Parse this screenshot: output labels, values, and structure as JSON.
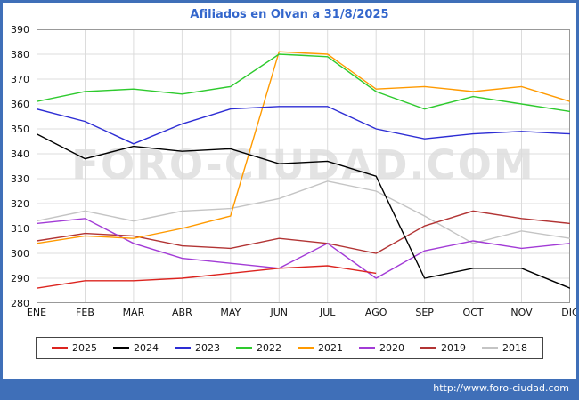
{
  "page": {
    "url": "http://www.foro-ciudad.com",
    "frame_color": "#3f6fb8",
    "title_color": "#3366cc"
  },
  "chart_data": {
    "type": "line",
    "title": "Afiliados en Olvan a 31/8/2025",
    "watermark": "FORO-CIUDAD.COM",
    "categories": [
      "ENE",
      "FEB",
      "MAR",
      "ABR",
      "MAY",
      "JUN",
      "JUL",
      "AGO",
      "SEP",
      "OCT",
      "NOV",
      "DIC"
    ],
    "ylim": [
      280,
      390
    ],
    "ytick_step": 10,
    "grid": true,
    "legend_position": "bottom",
    "series": [
      {
        "name": "2025",
        "color": "#dc241f",
        "values": [
          286,
          289,
          289,
          290,
          292,
          294,
          295,
          292,
          null,
          null,
          null,
          null
        ]
      },
      {
        "name": "2024",
        "color": "#000000",
        "values": [
          348,
          338,
          343,
          341,
          342,
          336,
          337,
          331,
          290,
          294,
          294,
          286
        ]
      },
      {
        "name": "2023",
        "color": "#2d2dd4",
        "values": [
          358,
          353,
          344,
          352,
          358,
          359,
          359,
          350,
          346,
          348,
          349,
          348
        ]
      },
      {
        "name": "2022",
        "color": "#2eca2e",
        "values": [
          361,
          365,
          366,
          364,
          367,
          380,
          379,
          365,
          358,
          363,
          360,
          357
        ]
      },
      {
        "name": "2021",
        "color": "#ff9a00",
        "values": [
          304,
          307,
          306,
          310,
          315,
          381,
          380,
          366,
          367,
          365,
          367,
          361
        ]
      },
      {
        "name": "2020",
        "color": "#a23bd6",
        "values": [
          312,
          314,
          304,
          298,
          296,
          294,
          304,
          290,
          301,
          305,
          302,
          304
        ]
      },
      {
        "name": "2019",
        "color": "#b23434",
        "values": [
          305,
          308,
          307,
          303,
          302,
          306,
          304,
          300,
          311,
          317,
          314,
          312
        ]
      },
      {
        "name": "2018",
        "color": "#c4c4c4",
        "values": [
          313,
          317,
          313,
          317,
          318,
          322,
          329,
          325,
          315,
          304,
          309,
          306
        ]
      }
    ]
  }
}
